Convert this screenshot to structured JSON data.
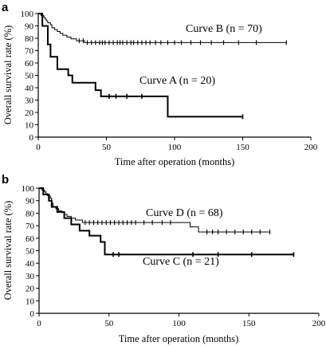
{
  "chart_data": [
    {
      "panel": "a",
      "type": "line",
      "title": "",
      "xlabel": "Time after operation (months)",
      "ylabel": "Overall survival rate (%)",
      "xlim": [
        0,
        200
      ],
      "ylim": [
        0,
        100
      ],
      "xticks": [
        0,
        50,
        100,
        150,
        200
      ],
      "yticks": [
        0,
        10,
        20,
        30,
        40,
        50,
        60,
        70,
        80,
        90,
        100
      ],
      "grid": false,
      "series": [
        {
          "name": "Curve B (n = 70)",
          "line_width": 1,
          "steps": [
            [
              0,
              100
            ],
            [
              2,
              98.5
            ],
            [
              4,
              97
            ],
            [
              5,
              95.5
            ],
            [
              6,
              94
            ],
            [
              7,
              92.5
            ],
            [
              9,
              91
            ],
            [
              10,
              88.5
            ],
            [
              12,
              87
            ],
            [
              14,
              85.5
            ],
            [
              16,
              84
            ],
            [
              18,
              82.5
            ],
            [
              21,
              81
            ],
            [
              24,
              79.5
            ],
            [
              28,
              78
            ],
            [
              34,
              76.5
            ],
            [
              182,
              76.5
            ]
          ],
          "censored": [
            30,
            33,
            36,
            39,
            42,
            45,
            47,
            49,
            52,
            55,
            58,
            60,
            62,
            65,
            68,
            70,
            73,
            76,
            79,
            82,
            86,
            90,
            95,
            100,
            105,
            112,
            119,
            127,
            136,
            147,
            160,
            182
          ]
        },
        {
          "name": "Curve A (n = 20)",
          "line_width": 2,
          "steps": [
            [
              0,
              100
            ],
            [
              3,
              90
            ],
            [
              7,
              75
            ],
            [
              9,
              65
            ],
            [
              14,
              55
            ],
            [
              22,
              50
            ],
            [
              25,
              44
            ],
            [
              42,
              38
            ],
            [
              46,
              33
            ],
            [
              95,
              16.5
            ],
            [
              150,
              16.5
            ]
          ],
          "censored": [
            52,
            57,
            65,
            76,
            150
          ]
        }
      ],
      "labels": [
        "Curve B (n = 70)",
        "Curve A (n = 20)"
      ]
    },
    {
      "panel": "b",
      "type": "line",
      "title": "",
      "xlabel": "Time after operation (months)",
      "ylabel": "Overall survival rate (%)",
      "xlim": [
        0,
        200
      ],
      "ylim": [
        0,
        100
      ],
      "xticks": [
        0,
        50,
        100,
        150,
        200
      ],
      "yticks": [
        0,
        10,
        20,
        30,
        40,
        50,
        60,
        70,
        80,
        90,
        100
      ],
      "grid": false,
      "series": [
        {
          "name": "Curve D (n = 68)",
          "line_width": 1,
          "steps": [
            [
              0,
              100
            ],
            [
              2,
              98.5
            ],
            [
              4,
              97
            ],
            [
              5,
              95.5
            ],
            [
              6,
              94
            ],
            [
              8,
              92
            ],
            [
              9,
              88
            ],
            [
              10,
              85
            ],
            [
              12,
              83.5
            ],
            [
              14,
              82
            ],
            [
              16,
              80.5
            ],
            [
              18,
              79
            ],
            [
              20,
              77.5
            ],
            [
              23,
              76
            ],
            [
              26,
              74.5
            ],
            [
              31,
              72.5
            ],
            [
              108,
              72.5
            ],
            [
              108,
              69
            ],
            [
              114,
              69
            ],
            [
              114,
              65
            ],
            [
              165,
              65
            ]
          ],
          "censored": [
            33,
            36,
            39,
            42,
            45,
            48,
            51,
            54,
            57,
            60,
            63,
            66,
            69,
            75,
            81,
            88,
            94,
            120,
            124,
            128,
            134,
            140,
            146,
            152,
            158,
            165
          ]
        },
        {
          "name": "Curve C (n = 21)",
          "line_width": 2,
          "steps": [
            [
              0,
              100
            ],
            [
              3,
              95
            ],
            [
              7,
              90
            ],
            [
              9,
              85
            ],
            [
              13,
              81
            ],
            [
              18,
              76
            ],
            [
              23,
              71
            ],
            [
              29,
              66
            ],
            [
              36,
              62
            ],
            [
              44,
              57
            ],
            [
              47,
              47
            ],
            [
              182,
              47
            ]
          ],
          "censored": [
            53,
            57,
            110,
            128,
            152,
            182
          ]
        }
      ],
      "labels": [
        "Curve D (n = 68)",
        "Curve C (n = 21)"
      ]
    }
  ]
}
